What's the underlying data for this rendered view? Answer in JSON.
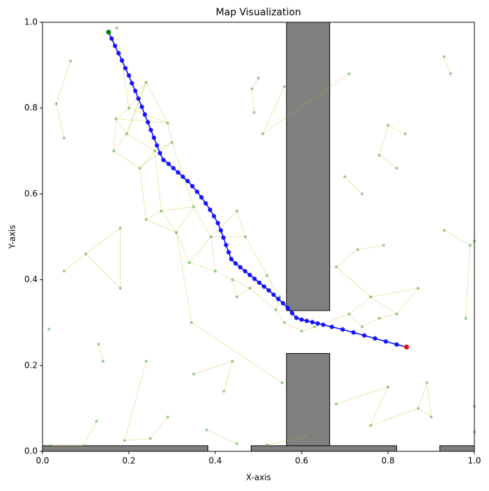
{
  "chart_data": {
    "type": "map",
    "title": "Map Visualization",
    "xlabel": "X-axis",
    "ylabel": "Y-axis",
    "xlim": [
      0,
      1
    ],
    "ylim": [
      0,
      1
    ],
    "xticks": [
      {
        "value": 0,
        "label": "0.0"
      },
      {
        "value": 0.2,
        "label": "0.2"
      },
      {
        "value": 0.4,
        "label": "0.4"
      },
      {
        "value": 0.6,
        "label": "0.6"
      },
      {
        "value": 0.8,
        "label": "0.8"
      },
      {
        "value": 1,
        "label": "1.0"
      }
    ],
    "yticks": [
      {
        "value": 0,
        "label": "0.0"
      },
      {
        "value": 0.2,
        "label": "0.2"
      },
      {
        "value": 0.4,
        "label": "0.4"
      },
      {
        "value": 0.6,
        "label": "0.6"
      },
      {
        "value": 0.8,
        "label": "0.8"
      },
      {
        "value": 1,
        "label": "1.0"
      }
    ],
    "obstacle_color": "#808080",
    "obstacles": [
      {
        "x": 0.565,
        "y": 0.328,
        "width": 0.1,
        "height": 0.672
      },
      {
        "x": 0.565,
        "y": 0,
        "width": 0.1,
        "height": 0.228
      },
      {
        "x": 0,
        "y": 0,
        "width": 0.383,
        "height": 0.013
      },
      {
        "x": 0.483,
        "y": 0,
        "width": 0.337,
        "height": 0.013
      },
      {
        "x": 0.92,
        "y": 0,
        "width": 0.08,
        "height": 0.013
      }
    ],
    "node_color": "#2ca02c",
    "edge_color": "#bcbd22",
    "nodes": {
      "x": [
        0.172,
        0.065,
        0.032,
        0.05,
        0.17,
        0.2,
        0.24,
        0.29,
        0.165,
        0.225,
        0.26,
        0.195,
        0.3,
        0.275,
        0.24,
        0.31,
        0.35,
        0.39,
        0.45,
        0.47,
        0.34,
        0.4,
        0.44,
        0.48,
        0.52,
        0.55,
        0.56,
        0.54,
        0.45,
        0.5,
        0.485,
        0.49,
        0.56,
        0.51,
        0.7,
        0.74,
        0.71,
        0.8,
        0.78,
        0.84,
        0.82,
        0.73,
        0.79,
        0.68,
        0.76,
        0.82,
        0.87,
        0.71,
        0.78,
        0.74,
        0.1,
        0.18,
        0.05,
        0.18,
        0.13,
        0.14,
        0.24,
        0.345,
        0.35,
        0.42,
        0.44,
        0.555,
        0.68,
        0.8,
        0.76,
        0.87,
        0.89,
        0.9,
        0.02,
        0.095,
        0.125,
        0.19,
        0.25,
        0.29,
        0.38,
        0.45,
        0.52,
        0.62,
        0.945,
        0.93,
        0.93,
        1,
        0.99,
        0.98,
        1,
        1,
        0.015,
        0.63,
        0.6
      ],
      "y": [
        0.987,
        0.91,
        0.81,
        0.73,
        0.775,
        0.8,
        0.86,
        0.765,
        0.7,
        0.66,
        0.7,
        0.74,
        0.72,
        0.56,
        0.54,
        0.51,
        0.57,
        0.5,
        0.56,
        0.5,
        0.44,
        0.42,
        0.4,
        0.38,
        0.41,
        0.36,
        0.3,
        0.33,
        0.36,
        0.87,
        0.845,
        0.79,
        0.85,
        0.74,
        0.64,
        0.6,
        0.88,
        0.76,
        0.69,
        0.74,
        0.66,
        0.47,
        0.48,
        0.43,
        0.36,
        0.32,
        0.38,
        0.32,
        0.31,
        0.29,
        0.46,
        0.52,
        0.42,
        0.38,
        0.25,
        0.21,
        0.21,
        0.3,
        0.18,
        0.14,
        0.21,
        0.16,
        0.11,
        0.15,
        0.06,
        0.1,
        0.16,
        0.08,
        0.013,
        0.013,
        0.07,
        0.025,
        0.03,
        0.08,
        0.05,
        0.018,
        0.015,
        0.035,
        0.88,
        0.92,
        0.515,
        0.49,
        0.48,
        0.31,
        0.105,
        0.045,
        0.285,
        0.29,
        0.28
      ]
    },
    "edges": [
      [
        0,
        5
      ],
      [
        5,
        6
      ],
      [
        4,
        5
      ],
      [
        4,
        11
      ],
      [
        11,
        6
      ],
      [
        6,
        7
      ],
      [
        5,
        7
      ],
      [
        4,
        8
      ],
      [
        8,
        9
      ],
      [
        9,
        10
      ],
      [
        10,
        11
      ],
      [
        10,
        12
      ],
      [
        7,
        12
      ],
      [
        11,
        8
      ],
      [
        9,
        12
      ],
      [
        6,
        11
      ],
      [
        4,
        7
      ],
      [
        2,
        3
      ],
      [
        1,
        2
      ],
      [
        13,
        14
      ],
      [
        13,
        15
      ],
      [
        14,
        15
      ],
      [
        15,
        16
      ],
      [
        13,
        16
      ],
      [
        16,
        17
      ],
      [
        17,
        18
      ],
      [
        18,
        19
      ],
      [
        17,
        19
      ],
      [
        15,
        20
      ],
      [
        20,
        21
      ],
      [
        21,
        22
      ],
      [
        22,
        23
      ],
      [
        23,
        24
      ],
      [
        24,
        25
      ],
      [
        25,
        27
      ],
      [
        27,
        26
      ],
      [
        22,
        28
      ],
      [
        28,
        23
      ],
      [
        20,
        17
      ],
      [
        21,
        17
      ],
      [
        19,
        24
      ],
      [
        23,
        27
      ],
      [
        26,
        88
      ],
      [
        88,
        87
      ],
      [
        87,
        47
      ],
      [
        47,
        49
      ],
      [
        49,
        48
      ],
      [
        48,
        45
      ],
      [
        45,
        44
      ],
      [
        44,
        47
      ],
      [
        44,
        46
      ],
      [
        46,
        45
      ],
      [
        43,
        44
      ],
      [
        41,
        42
      ],
      [
        41,
        43
      ],
      [
        34,
        35
      ],
      [
        37,
        39
      ],
      [
        38,
        40
      ],
      [
        37,
        38
      ],
      [
        29,
        30
      ],
      [
        30,
        31
      ],
      [
        32,
        33
      ],
      [
        12,
        16
      ],
      [
        10,
        13
      ],
      [
        50,
        51
      ],
      [
        52,
        50
      ],
      [
        51,
        53
      ],
      [
        50,
        53
      ],
      [
        54,
        55
      ],
      [
        57,
        15
      ],
      [
        58,
        60
      ],
      [
        59,
        60
      ],
      [
        62,
        63
      ],
      [
        63,
        64
      ],
      [
        65,
        66
      ],
      [
        66,
        67
      ],
      [
        65,
        67
      ],
      [
        64,
        65
      ],
      [
        68,
        69
      ],
      [
        69,
        70
      ],
      [
        71,
        72
      ],
      [
        72,
        73
      ],
      [
        74,
        75
      ],
      [
        76,
        77
      ],
      [
        78,
        79
      ],
      [
        80,
        82
      ],
      [
        81,
        82
      ],
      [
        83,
        82
      ],
      [
        84,
        85
      ],
      [
        56,
        71
      ],
      [
        36,
        33
      ],
      [
        61,
        57
      ],
      [
        9,
        14
      ]
    ],
    "path": {
      "color": "#0000ff",
      "x": [
        0.153,
        0.16,
        0.168,
        0.176,
        0.184,
        0.192,
        0.2,
        0.207,
        0.215,
        0.222,
        0.23,
        0.237,
        0.244,
        0.251,
        0.258,
        0.265,
        0.272,
        0.28,
        0.292,
        0.303,
        0.314,
        0.325,
        0.336,
        0.347,
        0.358,
        0.368,
        0.378,
        0.388,
        0.397,
        0.406,
        0.413,
        0.419,
        0.425,
        0.431,
        0.437,
        0.447,
        0.458,
        0.469,
        0.48,
        0.491,
        0.502,
        0.513,
        0.524,
        0.535,
        0.546,
        0.557,
        0.568,
        0.578,
        0.588,
        0.6,
        0.612,
        0.625,
        0.637,
        0.65,
        0.67,
        0.695,
        0.72,
        0.745,
        0.77,
        0.795,
        0.82,
        0.843
      ],
      "y": [
        0.977,
        0.962,
        0.945,
        0.928,
        0.911,
        0.893,
        0.876,
        0.858,
        0.84,
        0.822,
        0.803,
        0.785,
        0.767,
        0.749,
        0.731,
        0.713,
        0.695,
        0.679,
        0.67,
        0.66,
        0.65,
        0.64,
        0.63,
        0.618,
        0.605,
        0.592,
        0.578,
        0.563,
        0.548,
        0.532,
        0.515,
        0.498,
        0.481,
        0.464,
        0.448,
        0.438,
        0.429,
        0.42,
        0.411,
        0.402,
        0.393,
        0.384,
        0.375,
        0.365,
        0.355,
        0.345,
        0.334,
        0.322,
        0.311,
        0.307,
        0.304,
        0.301,
        0.298,
        0.295,
        0.29,
        0.284,
        0.277,
        0.27,
        0.263,
        0.256,
        0.249,
        0.243
      ]
    },
    "start": {
      "x": 0.153,
      "y": 0.977,
      "color": "#008000"
    },
    "goal": {
      "x": 0.843,
      "y": 0.243,
      "color": "#ff0000"
    }
  }
}
